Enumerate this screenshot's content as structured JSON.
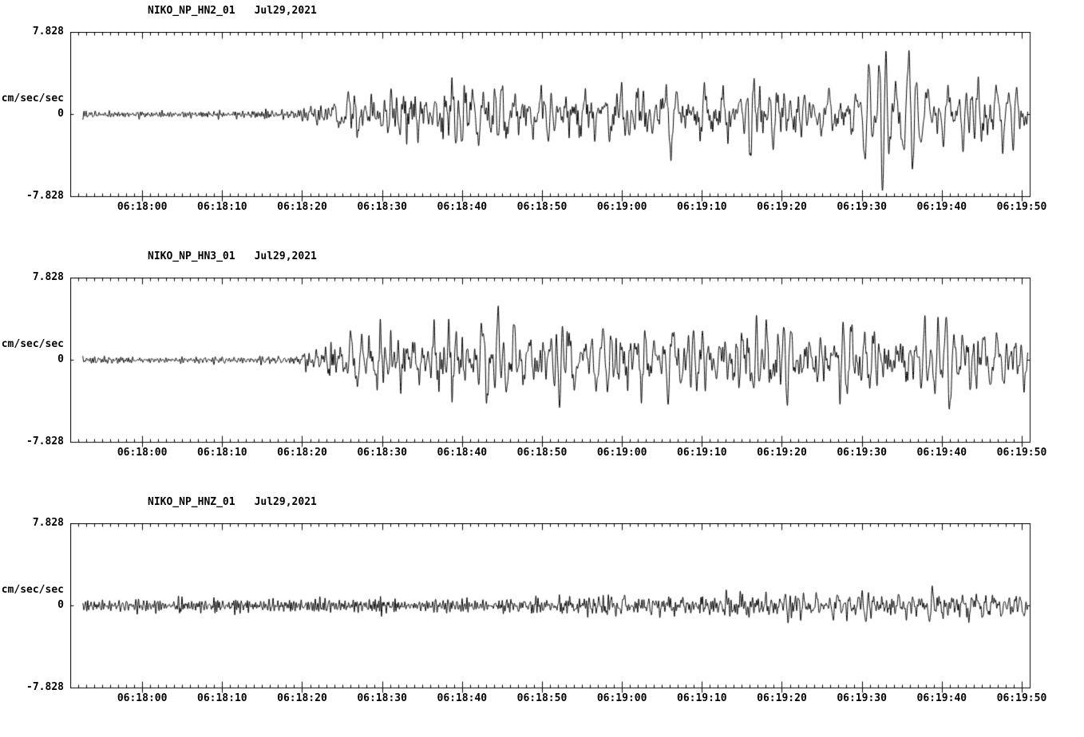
{
  "page": {
    "background": "#ffffff",
    "text_color": "#000000"
  },
  "chart_data": [
    {
      "type": "line",
      "title_station": "NIKO_NP_HN2_01",
      "title_date": "Jul29,2021",
      "ylabel": "cm/sec/sec",
      "ymax_label": "7.828",
      "yzero_label": "0",
      "ymin_label": "-7.828",
      "ylim": [
        -7.828,
        7.828
      ],
      "line_color": "#000000",
      "x_span_seconds": 120,
      "minor_tick_seconds": 1,
      "x_tick_labels": [
        "06:18:00",
        "06:18:10",
        "06:18:20",
        "06:18:30",
        "06:18:40",
        "06:18:50",
        "06:19:00",
        "06:19:10",
        "06:19:20",
        "06:19:30",
        "06:19:40",
        "06:19:50"
      ],
      "x_tick_offsets_seconds": [
        9,
        19,
        29,
        39,
        49,
        59,
        69,
        79,
        89,
        99,
        109,
        119
      ],
      "trace_start_seconds": 1.5,
      "seed": 1001,
      "bands": [
        {
          "fmin": 1.2,
          "fmax": 4.5,
          "n": 45,
          "envelope": [
            [
              0,
              0.28
            ],
            [
              26,
              0.3
            ],
            [
              30,
              0.55
            ],
            [
              34,
              0.9
            ],
            [
              50,
              1.0
            ],
            [
              70,
              0.9
            ],
            [
              120,
              0.7
            ]
          ]
        },
        {
          "fmin": 0.3,
          "fmax": 1.6,
          "n": 35,
          "envelope": [
            [
              0,
              0.03
            ],
            [
              26,
              0.06
            ],
            [
              31,
              0.6
            ],
            [
              36,
              1.4
            ],
            [
              44,
              1.9
            ],
            [
              55,
              2.3
            ],
            [
              70,
              2.5
            ],
            [
              85,
              2.6
            ],
            [
              99,
              2.5
            ],
            [
              101.5,
              5.8
            ],
            [
              103.5,
              6.6
            ],
            [
              106,
              3.4
            ],
            [
              112,
              3.1
            ],
            [
              120,
              2.5
            ]
          ]
        }
      ]
    },
    {
      "type": "line",
      "title_station": "NIKO_NP_HN3_01",
      "title_date": "Jul29,2021",
      "ylabel": "cm/sec/sec",
      "ymax_label": "7.828",
      "yzero_label": "0",
      "ymin_label": "-7.828",
      "ylim": [
        -7.828,
        7.828
      ],
      "line_color": "#000000",
      "x_span_seconds": 120,
      "minor_tick_seconds": 1,
      "x_tick_labels": [
        "06:18:00",
        "06:18:10",
        "06:18:20",
        "06:18:30",
        "06:18:40",
        "06:18:50",
        "06:19:00",
        "06:19:10",
        "06:19:20",
        "06:19:30",
        "06:19:40",
        "06:19:50"
      ],
      "x_tick_offsets_seconds": [
        9,
        19,
        29,
        39,
        49,
        59,
        69,
        79,
        89,
        99,
        109,
        119
      ],
      "trace_start_seconds": 1.5,
      "seed": 2002,
      "bands": [
        {
          "fmin": 1.2,
          "fmax": 4.5,
          "n": 45,
          "envelope": [
            [
              0,
              0.3
            ],
            [
              28,
              0.32
            ],
            [
              33,
              0.8
            ],
            [
              40,
              1.1
            ],
            [
              60,
              1.0
            ],
            [
              120,
              0.8
            ]
          ]
        },
        {
          "fmin": 0.35,
          "fmax": 1.8,
          "n": 35,
          "envelope": [
            [
              0,
              0.03
            ],
            [
              28,
              0.07
            ],
            [
              33,
              1.2
            ],
            [
              38,
              2.6
            ],
            [
              45,
              3.0
            ],
            [
              56,
              3.3
            ],
            [
              70,
              2.9
            ],
            [
              85,
              3.0
            ],
            [
              100,
              2.8
            ],
            [
              110,
              2.9
            ],
            [
              120,
              2.7
            ]
          ]
        }
      ]
    },
    {
      "type": "line",
      "title_station": "NIKO_NP_HNZ_01",
      "title_date": "Jul29,2021",
      "ylabel": "cm/sec/sec",
      "ymax_label": "7.828",
      "yzero_label": "0",
      "ymin_label": "-7.828",
      "ylim": [
        -7.828,
        7.828
      ],
      "line_color": "#000000",
      "x_span_seconds": 120,
      "minor_tick_seconds": 1,
      "x_tick_labels": [
        "06:18:00",
        "06:18:10",
        "06:18:20",
        "06:18:30",
        "06:18:40",
        "06:18:50",
        "06:19:00",
        "06:19:10",
        "06:19:20",
        "06:19:30",
        "06:19:40",
        "06:19:50"
      ],
      "x_tick_offsets_seconds": [
        9,
        19,
        29,
        39,
        49,
        59,
        69,
        79,
        89,
        99,
        109,
        119
      ],
      "trace_start_seconds": 1.5,
      "seed": 3003,
      "bands": [
        {
          "fmin": 1.5,
          "fmax": 5.0,
          "n": 45,
          "envelope": [
            [
              0,
              0.5
            ],
            [
              40,
              0.55
            ],
            [
              60,
              0.6
            ],
            [
              80,
              0.6
            ],
            [
              120,
              0.5
            ]
          ]
        },
        {
          "fmin": 0.4,
          "fmax": 1.8,
          "n": 30,
          "envelope": [
            [
              0,
              0.05
            ],
            [
              45,
              0.1
            ],
            [
              55,
              0.35
            ],
            [
              65,
              0.6
            ],
            [
              80,
              0.8
            ],
            [
              95,
              0.9
            ],
            [
              105,
              1.0
            ],
            [
              115,
              1.2
            ],
            [
              120,
              1.1
            ]
          ]
        }
      ]
    }
  ]
}
